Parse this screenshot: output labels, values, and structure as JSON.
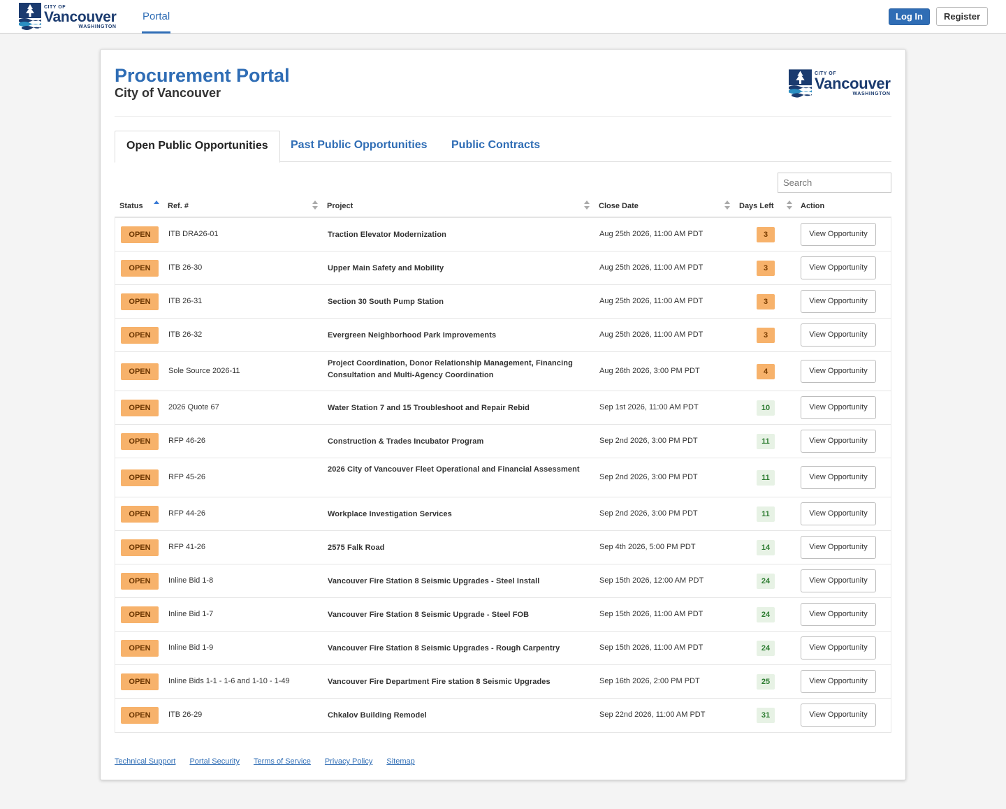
{
  "header": {
    "logo": {
      "city_of": "CITY OF",
      "name": "Vancouver",
      "state": "WASHINGTON"
    },
    "nav_tab": "Portal",
    "login_label": "Log In",
    "register_label": "Register"
  },
  "page": {
    "title": "Procurement Portal",
    "subtitle": "City of Vancouver",
    "tabs": [
      "Open Public Opportunities",
      "Past Public Opportunities",
      "Public Contracts"
    ],
    "active_tab": "Open Public Opportunities",
    "search_placeholder": "Search"
  },
  "table": {
    "columns": [
      "Status",
      "Ref. #",
      "Project",
      "Close Date",
      "Days Left",
      "Action"
    ],
    "rows": [
      {
        "status": "OPEN",
        "ref": "ITB DRA26-01",
        "project": "Traction Elevator Modernization",
        "close": "Aug 25th 2026, 11:00 AM PDT",
        "days": "3",
        "action": "View Opportunity"
      },
      {
        "status": "OPEN",
        "ref": "ITB 26-30",
        "project": "Upper Main Safety and Mobility",
        "close": "Aug 25th 2026, 11:00 AM PDT",
        "days": "3",
        "action": "View Opportunity"
      },
      {
        "status": "OPEN",
        "ref": "ITB 26-31",
        "project": "Section 30 South Pump Station",
        "close": "Aug 25th 2026, 11:00 AM PDT",
        "days": "3",
        "action": "View Opportunity"
      },
      {
        "status": "OPEN",
        "ref": "ITB 26-32",
        "project": "Evergreen Neighborhood Park Improvements",
        "close": "Aug 25th 2026, 11:00 AM PDT",
        "days": "3",
        "action": "View Opportunity"
      },
      {
        "status": "OPEN",
        "ref": "Sole Source 2026-11",
        "project": "Project Coordination, Donor Relationship Management, Financing Consultation and Multi-Agency Coordination",
        "close": "Aug 26th 2026, 3:00 PM PDT",
        "days": "4",
        "action": "View Opportunity"
      },
      {
        "status": "OPEN",
        "ref": "2026 Quote 67",
        "project": "Water Station 7 and 15 Troubleshoot and Repair Rebid",
        "close": "Sep 1st 2026, 11:00 AM PDT",
        "days": "10",
        "action": "View Opportunity"
      },
      {
        "status": "OPEN",
        "ref": "RFP 46-26",
        "project": "Construction & Trades Incubator Program",
        "close": "Sep 2nd 2026, 3:00 PM PDT",
        "days": "11",
        "action": "View Opportunity"
      },
      {
        "status": "OPEN",
        "ref": "RFP 45-26",
        "project": "2026 City of Vancouver Fleet Operational and Financial Assessment",
        "close": "Sep 2nd 2026, 3:00 PM PDT",
        "days": "11",
        "action": "View Opportunity"
      },
      {
        "status": "OPEN",
        "ref": "RFP 44-26",
        "project": "Workplace Investigation Services",
        "close": "Sep 2nd 2026, 3:00 PM PDT",
        "days": "11",
        "action": "View Opportunity"
      },
      {
        "status": "OPEN",
        "ref": "RFP 41-26",
        "project": "2575 Falk Road",
        "close": "Sep 4th 2026, 5:00 PM PDT",
        "days": "14",
        "action": "View Opportunity"
      },
      {
        "status": "OPEN",
        "ref": "Inline Bid 1-8",
        "project": "Vancouver Fire Station 8 Seismic Upgrades - Steel Install",
        "close": "Sep 15th 2026, 12:00 AM PDT",
        "days": "24",
        "action": "View Opportunity"
      },
      {
        "status": "OPEN",
        "ref": "Inline Bid 1-7",
        "project": "Vancouver Fire Station 8 Seismic Upgrade - Steel FOB",
        "close": "Sep 15th 2026, 11:00 AM PDT",
        "days": "24",
        "action": "View Opportunity"
      },
      {
        "status": "OPEN",
        "ref": "Inline Bid 1-9",
        "project": "Vancouver Fire Station 8 Seismic Upgrades - Rough Carpentry",
        "close": "Sep 15th 2026, 11:00 AM PDT",
        "days": "24",
        "action": "View Opportunity"
      },
      {
        "status": "OPEN",
        "ref": "Inline Bids 1-1 - 1-6 and 1-10 - 1-49",
        "project": "Vancouver Fire Department Fire station 8 Seismic Upgrades",
        "close": "Sep 16th 2026, 2:00 PM PDT",
        "days": "25",
        "action": "View Opportunity"
      },
      {
        "status": "OPEN",
        "ref": "ITB 26-29",
        "project": "Chkalov Building Remodel",
        "close": "Sep 22nd 2026, 11:00 AM PDT",
        "days": "31",
        "action": "View Opportunity"
      }
    ]
  },
  "footer": {
    "links": [
      "Technical Support",
      "Portal Security",
      "Terms of Service",
      "Privacy Policy",
      "Sitemap"
    ]
  },
  "colors": {
    "brand_blue": "#2f6db5",
    "logo_navy": "#1b3b6f",
    "status_open": "#f7b26b",
    "days_urgent": "#f7b26b",
    "days_ok": "#e7f2e5"
  }
}
